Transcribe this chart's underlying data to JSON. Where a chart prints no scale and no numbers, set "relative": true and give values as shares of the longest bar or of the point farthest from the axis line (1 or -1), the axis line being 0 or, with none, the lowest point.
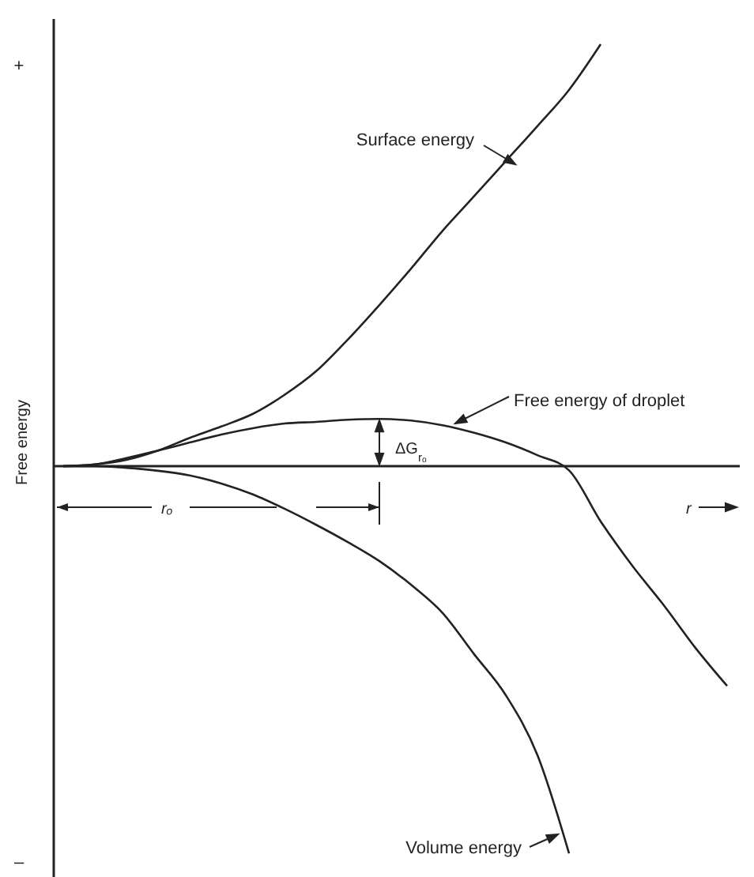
{
  "chart_data": {
    "type": "line",
    "relative": true,
    "xlabel": "r",
    "ylabel": "Free energy",
    "categories": [
      null,
      null,
      null,
      null,
      null,
      null,
      null,
      null,
      null,
      null,
      null,
      null,
      null,
      null,
      null,
      null,
      null,
      null,
      null,
      null,
      null,
      null
    ],
    "series": [
      {
        "name": "Surface energy",
        "color": "#222222",
        "values": [
          0,
          0.004,
          0.015,
          0.037,
          0.067,
          0.094,
          0.124,
          0.169,
          0.225,
          0.3,
          0.382,
          0.468,
          0.558,
          0.64,
          0.723,
          0.806,
          0.892,
          1,
          null,
          null,
          null,
          null
        ]
      },
      {
        "name": "Free energy of droplet",
        "color": "#222222",
        "values": [
          0,
          0.004,
          0.019,
          0.037,
          0.056,
          0.075,
          0.09,
          0.101,
          0.105,
          0.11,
          0.112,
          0.108,
          0.097,
          0.079,
          0.056,
          0.026,
          -0.01,
          -0.131,
          -0.236,
          -0.33,
          -0.431,
          -0.521
        ]
      },
      {
        "name": "Volume energy",
        "color": "#222222",
        "values": [
          0,
          0,
          -0.004,
          -0.011,
          -0.022,
          -0.041,
          -0.067,
          -0.101,
          -0.139,
          -0.18,
          -0.225,
          -0.281,
          -0.348,
          -0.446,
          -0.543,
          -0.685,
          -0.918,
          null,
          null,
          null,
          null,
          null
        ]
      }
    ],
    "annotations": [
      "+",
      "–",
      "ΔG$_{rₒ}$",
      "rₒ"
    ]
  }
}
